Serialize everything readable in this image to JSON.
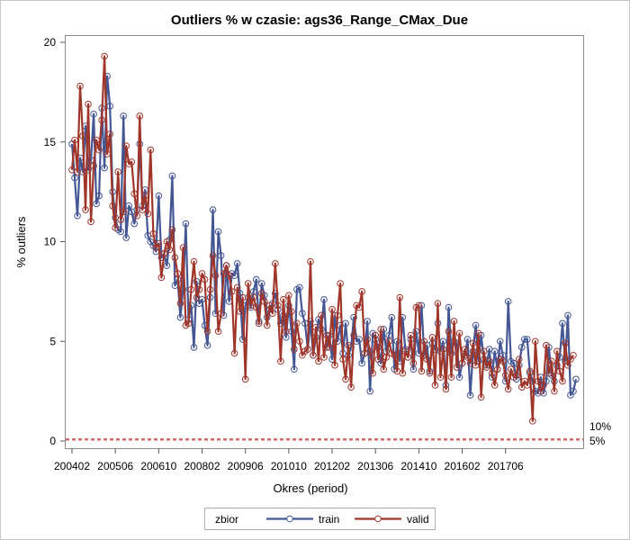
{
  "chart_data": {
    "type": "line",
    "title": "Outliers % w czasie: ags36_Range_CMax_Due",
    "xlabel": "Okres (period)",
    "ylabel": "% outliers",
    "ylim": [
      0,
      20
    ],
    "yticks": [
      0,
      5,
      10,
      15,
      20
    ],
    "x_tick_labels": [
      "200402",
      "200506",
      "200610",
      "200802",
      "200906",
      "201010",
      "201202",
      "201306",
      "201410",
      "201602",
      "201706"
    ],
    "x_start": "200402",
    "grid": false,
    "legend": {
      "title": "zbior",
      "position": "bottom-center"
    },
    "reference_lines": [
      {
        "value": 0.1,
        "label": "10%",
        "color": "#d05b5b"
      },
      {
        "value": 0.05,
        "label": "5%",
        "color": "#d05b5b"
      }
    ],
    "series": [
      {
        "name": "train",
        "color": "#445694",
        "values": [
          14.9,
          13.2,
          11.3,
          14.2,
          13.5,
          15.8,
          13.6,
          14.1,
          16.4,
          11.9,
          12.3,
          16.7,
          13.7,
          18.3,
          16.8,
          12.5,
          11.2,
          10.6,
          10.5,
          16.3,
          10.2,
          11.8,
          11.5,
          10.9,
          11.6,
          14.9,
          11.8,
          12.6,
          10.3,
          10.0,
          9.8,
          9.5,
          12.3,
          9.2,
          9.4,
          8.8,
          10.1,
          13.3,
          7.8,
          8.1,
          6.2,
          7.6,
          10.9,
          6.1,
          6.8,
          4.7,
          8.0,
          6.9,
          7.1,
          5.8,
          4.8,
          7.2,
          11.6,
          6.4,
          10.5,
          9.3,
          6.3,
          8.8,
          7.0,
          8.4,
          8.3,
          8.9,
          7.4,
          5.1,
          6.8,
          7.2,
          6.7,
          7.5,
          8.1,
          6.0,
          7.9,
          7.3,
          6.2,
          6.6,
          6.9,
          7.4,
          6.6,
          5.9,
          6.3,
          5.2,
          6.8,
          5.5,
          3.6,
          7.6,
          7.7,
          6.4,
          5.9,
          4.6,
          6.0,
          4.3,
          5.2,
          6.1,
          5.6,
          7.1,
          4.7,
          5.3,
          4.1,
          6.3,
          5.0,
          5.8,
          4.4,
          5.9,
          4.3,
          4.7,
          6.2,
          5.0,
          5.1,
          3.9,
          4.4,
          6.0,
          2.5,
          5.4,
          5.1,
          4.7,
          3.9,
          5.6,
          4.5,
          5.3,
          6.2,
          3.6,
          5.0,
          4.0,
          6.2,
          4.6,
          4.2,
          5.1,
          3.6,
          5.5,
          4.4,
          6.8,
          4.3,
          4.8,
          3.5,
          4.9,
          4.6,
          5.9,
          4.5,
          5.0,
          2.8,
          6.7,
          4.4,
          5.0,
          4.9,
          3.2,
          3.9,
          4.3,
          5.1,
          2.3,
          4.5,
          5.8,
          4.0,
          5.3,
          4.1,
          3.8,
          4.6,
          3.2,
          4.5,
          3.6,
          5.0,
          4.3,
          3.0,
          7.0,
          4.0,
          3.9,
          3.1,
          3.8,
          4.7,
          5.1,
          5.1,
          3.4,
          3.0,
          2.5,
          2.4,
          3.2,
          2.4,
          3.0,
          4.7,
          3.3,
          3.0,
          3.8,
          4.2,
          5.9,
          4.0,
          6.3,
          2.3,
          2.5,
          3.1
        ]
      },
      {
        "name": "valid",
        "color": "#a0352a",
        "values": [
          13.6,
          15.1,
          13.5,
          17.8,
          15.3,
          11.6,
          16.9,
          11.0,
          13.8,
          15.1,
          14.6,
          16.1,
          19.3,
          14.4,
          15.4,
          11.8,
          10.7,
          13.5,
          11.1,
          11.5,
          14.8,
          13.9,
          14.0,
          12.4,
          11.3,
          16.3,
          11.6,
          12.3,
          11.4,
          14.6,
          10.4,
          9.7,
          9.9,
          8.2,
          9.4,
          10.0,
          9.6,
          10.6,
          9.2,
          8.4,
          6.9,
          9.7,
          5.8,
          5.9,
          7.6,
          9.0,
          7.2,
          7.6,
          8.4,
          8.1,
          5.5,
          7.6,
          9.3,
          8.3,
          5.5,
          6.4,
          8.4,
          8.8,
          8.3,
          7.5,
          4.4,
          7.7,
          6.5,
          7.2,
          3.1,
          7.9,
          6.8,
          7.2,
          6.7,
          5.9,
          7.4,
          7.0,
          5.8,
          6.8,
          6.4,
          8.9,
          6.8,
          4.0,
          7.1,
          5.5,
          7.3,
          6.5,
          4.6,
          5.9,
          5.0,
          4.3,
          4.5,
          4.6,
          9.0,
          4.3,
          5.7,
          4.0,
          6.3,
          4.2,
          5.3,
          4.7,
          6.6,
          3.8,
          6.3,
          7.9,
          4.1,
          3.1,
          4.8,
          2.7,
          5.3,
          6.8,
          6.7,
          7.5,
          4.4,
          5.1,
          4.5,
          3.4,
          5.3,
          4.1,
          5.6,
          3.6,
          4.2,
          5.0,
          4.4,
          4.3,
          3.5,
          7.2,
          3.4,
          4.5,
          4.2,
          5.3,
          3.9,
          6.7,
          6.8,
          3.5,
          5.0,
          4.1,
          3.4,
          5.2,
          2.8,
          6.9,
          3.2,
          4.6,
          2.6,
          5.5,
          3.2,
          6.0,
          3.7,
          5.4,
          3.9,
          4.6,
          4.2,
          3.9,
          4.9,
          3.8,
          5.4,
          2.2,
          4.5,
          3.7,
          4.0,
          3.4,
          2.8,
          3.6,
          4.1,
          4.0,
          3.3,
          2.6,
          3.6,
          3.2,
          3.3,
          4.1,
          2.7,
          3.0,
          2.8,
          3.5,
          1.0,
          5.0,
          3.0,
          2.5,
          2.8,
          4.8,
          3.4,
          4.0,
          2.5,
          4.5,
          3.5,
          3.0,
          4.9,
          3.8,
          4.1,
          4.3
        ]
      }
    ]
  }
}
